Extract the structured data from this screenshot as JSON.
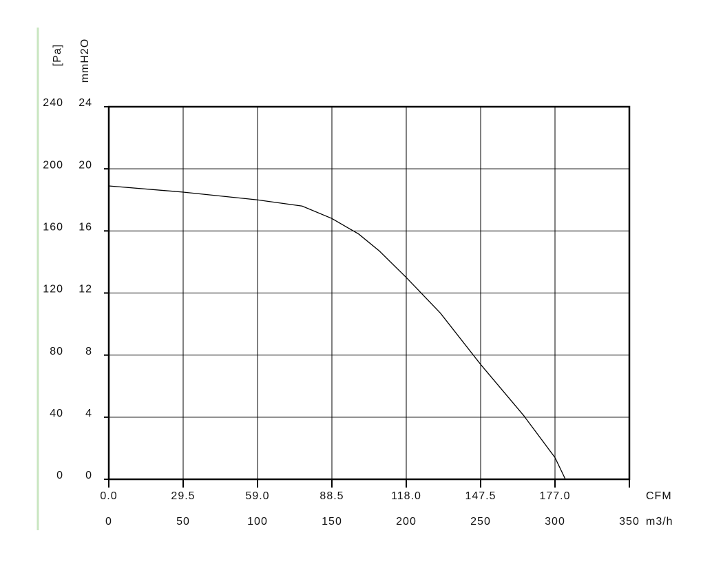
{
  "chart_data": {
    "type": "line",
    "x_label": "m3/h",
    "x2_label": "CFM",
    "y_label": "[Pa]",
    "y2_label": "mmH2O",
    "x": [
      0,
      50,
      100,
      130,
      150,
      168,
      182,
      200,
      223,
      250,
      279,
      300,
      307
    ],
    "series": [
      {
        "color": "#000000",
        "values": [
          189,
          185,
          180,
          176,
          168,
          158,
          147,
          130,
          107,
          74,
          41,
          14,
          0
        ]
      }
    ],
    "xlim": [
      0,
      350
    ],
    "xticks": [
      0,
      50,
      100,
      150,
      200,
      250,
      300,
      350
    ],
    "x2lim": [
      0,
      206.5
    ],
    "x2ticks": [
      {
        "value": 0,
        "label": "0.0"
      },
      29.5,
      {
        "value": 59,
        "label": "59.0"
      },
      88.5,
      {
        "value": 118,
        "label": "118.0"
      },
      147.5,
      {
        "value": 177,
        "label": "177.0"
      }
    ],
    "ylim": [
      0,
      240
    ],
    "yticks": [
      0,
      40,
      80,
      120,
      160,
      200,
      240
    ],
    "y2lim": [
      0,
      24
    ],
    "y2ticks": [
      0,
      4,
      8,
      12,
      16,
      20,
      24
    ],
    "grid": true
  }
}
